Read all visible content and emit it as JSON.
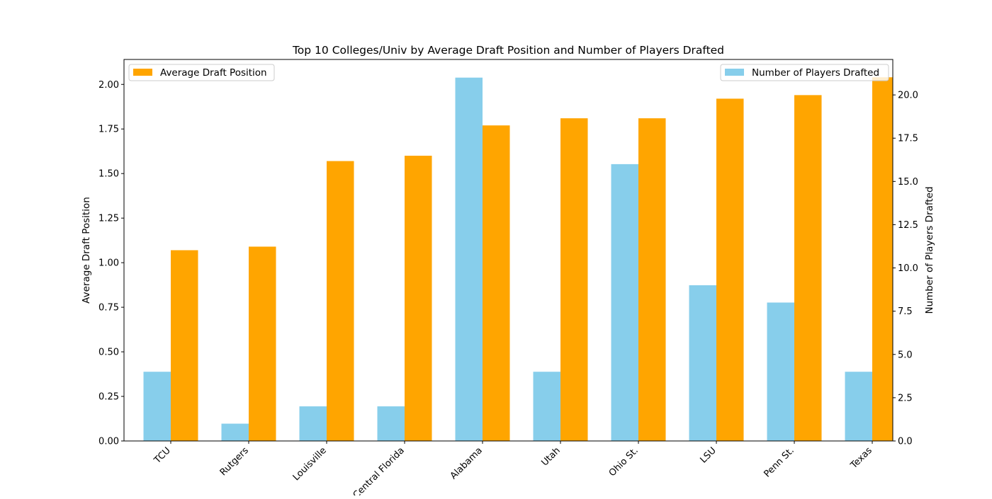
{
  "chart_data": {
    "type": "bar",
    "title": "Top 10 Colleges/Univ by Average Draft Position and Number of Players Drafted",
    "categories": [
      "TCU",
      "Rutgers",
      "Louisville",
      "Central Florida",
      "Alabama",
      "Utah",
      "Ohio St.",
      "LSU",
      "Penn St.",
      "Texas"
    ],
    "xlabel": "",
    "series": [
      {
        "name": "Number of Players Drafted",
        "axis": "right",
        "color": "#87ceeb",
        "values": [
          4,
          1,
          2,
          2,
          21,
          4,
          16,
          9,
          8,
          4
        ]
      },
      {
        "name": "Average Draft Position",
        "axis": "left",
        "color": "#ffa500",
        "values": [
          1.07,
          1.09,
          1.57,
          1.6,
          1.77,
          1.81,
          1.81,
          1.92,
          1.94,
          2.04
        ]
      }
    ],
    "y_left": {
      "label": "Average Draft Position",
      "ylim": [
        0,
        2.14
      ],
      "ticks": [
        "0.00",
        "0.25",
        "0.50",
        "0.75",
        "1.00",
        "1.25",
        "1.50",
        "1.75",
        "2.00"
      ]
    },
    "y_right": {
      "label": "Number of Players Drafted",
      "ylim": [
        0,
        22.05
      ],
      "ticks": [
        "0.0",
        "2.5",
        "5.0",
        "7.5",
        "10.0",
        "12.5",
        "15.0",
        "17.5",
        "20.0"
      ]
    },
    "legends": [
      {
        "placement": "upper-left",
        "entries": [
          "Average Draft Position"
        ]
      },
      {
        "placement": "upper-right",
        "entries": [
          "Number of Players Drafted"
        ]
      }
    ],
    "grid": false
  }
}
